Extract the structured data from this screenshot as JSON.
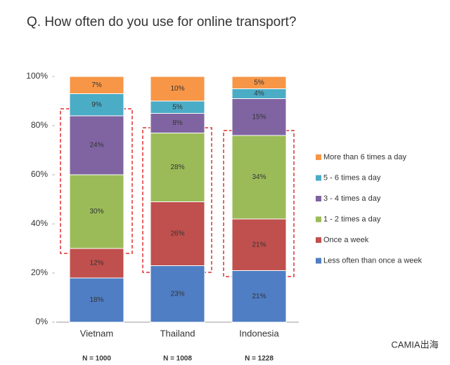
{
  "chart_data": {
    "type": "stacked-bar",
    "title": "Q. How often do you use for online transport?",
    "categories": [
      "Vietnam",
      "Thailand",
      "Indonesia"
    ],
    "sample_sizes": [
      "N = 1000",
      "N = 1008",
      "N = 1228"
    ],
    "series": [
      {
        "name": "Less often than once a week",
        "color": "#4f7ec4",
        "values": [
          18,
          23,
          21
        ],
        "value_labels": [
          "18%",
          "23%",
          "21%"
        ]
      },
      {
        "name": "Once a week",
        "color": "#c0504d",
        "values": [
          12,
          26,
          21
        ],
        "value_labels": [
          "12%",
          "26%",
          "21%"
        ]
      },
      {
        "name": "1 - 2 times a day",
        "color": "#9bbb59",
        "values": [
          30,
          28,
          34
        ],
        "value_labels": [
          "30%",
          "28%",
          "34%"
        ]
      },
      {
        "name": "3 - 4 times a day",
        "color": "#8064a2",
        "values": [
          24,
          8,
          15
        ],
        "value_labels": [
          "24%",
          "8%",
          "15%"
        ]
      },
      {
        "name": "5 - 6 times a day",
        "color": "#4bacc6",
        "values": [
          9,
          5,
          4
        ],
        "value_labels": [
          "9%",
          "5%",
          "4%"
        ]
      },
      {
        "name": "More than 6 times a day",
        "color": "#f79646",
        "values": [
          7,
          10,
          5
        ],
        "value_labels": [
          "7%",
          "10%",
          "5%"
        ]
      }
    ],
    "ylim": [
      0,
      100
    ],
    "yticks": [
      {
        "value": 0,
        "label": "0%"
      },
      {
        "value": 20,
        "label": "20%"
      },
      {
        "value": 40,
        "label": "40%"
      },
      {
        "value": 60,
        "label": "60%"
      },
      {
        "value": 80,
        "label": "80%"
      },
      {
        "value": 100,
        "label": "100%"
      }
    ],
    "legend": "right",
    "watermark": "CAMIA出海"
  }
}
